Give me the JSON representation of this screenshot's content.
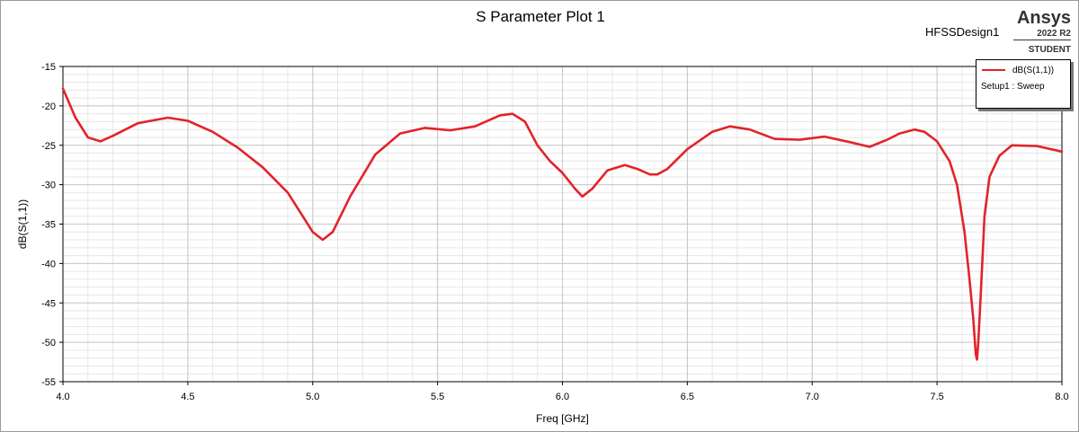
{
  "header": {
    "title": "S Parameter Plot 1",
    "design_name": "HFSSDesign1",
    "brand": "Ansys",
    "version": "2022 R2",
    "edition": "STUDENT"
  },
  "legend": {
    "setup": "Setup1 : Sweep"
  },
  "colors": {
    "trace": "#e3232a",
    "grid_major": "#c8c8c8",
    "grid_minor": "#e6e6e6"
  },
  "chart_data": {
    "type": "line",
    "title": "S Parameter Plot 1",
    "xlabel": "Freq [GHz]",
    "ylabel": "dB(S(1,1))",
    "xlim": [
      4.0,
      8.0
    ],
    "ylim": [
      -55,
      -15
    ],
    "xticks": [
      4.0,
      4.5,
      5.0,
      5.5,
      6.0,
      6.5,
      7.0,
      7.5,
      8.0
    ],
    "xtick_labels": [
      "4.0",
      "4.5",
      "5.0",
      "5.5",
      "6.0",
      "6.5",
      "7.0",
      "7.5",
      "8.0"
    ],
    "yticks": [
      -15,
      -20,
      -25,
      -30,
      -35,
      -40,
      -45,
      -50,
      -55
    ],
    "ytick_labels": [
      "-15",
      "-20",
      "-25",
      "-30",
      "-35",
      "-40",
      "-45",
      "-50",
      "-55"
    ],
    "grid": true,
    "legend_position": "top-right",
    "series": [
      {
        "name": "dB(S(1,1))",
        "x": [
          4.0,
          4.05,
          4.1,
          4.15,
          4.2,
          4.3,
          4.42,
          4.5,
          4.6,
          4.7,
          4.8,
          4.9,
          4.95,
          5.0,
          5.04,
          5.08,
          5.15,
          5.25,
          5.35,
          5.45,
          5.55,
          5.65,
          5.75,
          5.8,
          5.85,
          5.9,
          5.95,
          6.0,
          6.05,
          6.08,
          6.12,
          6.18,
          6.25,
          6.3,
          6.35,
          6.38,
          6.42,
          6.5,
          6.6,
          6.67,
          6.75,
          6.85,
          6.95,
          7.05,
          7.15,
          7.23,
          7.3,
          7.35,
          7.41,
          7.45,
          7.5,
          7.55,
          7.58,
          7.61,
          7.63,
          7.645,
          7.655,
          7.66,
          7.665,
          7.675,
          7.69,
          7.71,
          7.75,
          7.8,
          7.9,
          8.0
        ],
        "y": [
          -17.8,
          -21.5,
          -24.0,
          -24.5,
          -23.8,
          -22.2,
          -21.5,
          -21.9,
          -23.3,
          -25.3,
          -27.8,
          -31.0,
          -33.5,
          -36.0,
          -37.0,
          -36.0,
          -31.5,
          -26.2,
          -23.5,
          -22.8,
          -23.1,
          -22.6,
          -21.2,
          -21.0,
          -22.0,
          -25.0,
          -27.0,
          -28.5,
          -30.5,
          -31.5,
          -30.5,
          -28.2,
          -27.5,
          -28.0,
          -28.7,
          -28.7,
          -28.0,
          -25.5,
          -23.3,
          -22.6,
          -23.0,
          -24.2,
          -24.3,
          -23.9,
          -24.6,
          -25.2,
          -24.3,
          -23.5,
          -23.0,
          -23.3,
          -24.5,
          -27.0,
          -30.0,
          -36.0,
          -42.0,
          -47.0,
          -51.5,
          -52.2,
          -50.0,
          -44.0,
          -34.0,
          -29.0,
          -26.3,
          -25.0,
          -25.1,
          -25.8
        ]
      }
    ]
  }
}
